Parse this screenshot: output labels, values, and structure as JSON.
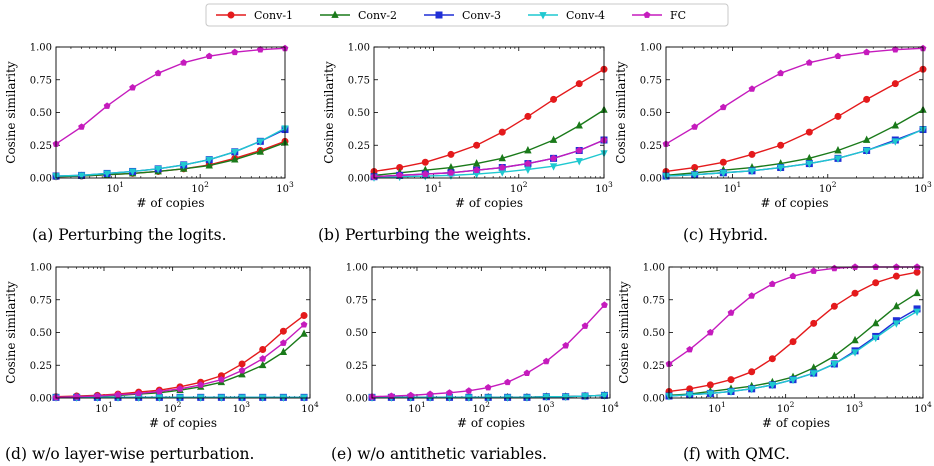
{
  "legend": [
    {
      "name": "Conv-1",
      "color": "#e41a1c",
      "marker": "circle"
    },
    {
      "name": "Conv-2",
      "color": "#1a7a1a",
      "marker": "triangle-up"
    },
    {
      "name": "Conv-3",
      "color": "#1f2fd6",
      "marker": "square"
    },
    {
      "name": "Conv-4",
      "color": "#1fc8d0",
      "marker": "triangle-down"
    },
    {
      "name": "FC",
      "color": "#c51bbd",
      "marker": "pentagon"
    }
  ],
  "chart_data": [
    {
      "type": "line",
      "caption": "(a) Perturbing the logits.",
      "xlabel": "# of copies",
      "ylabel": "Cosine similarity",
      "xscale": "log",
      "xlim": [
        2,
        1000
      ],
      "ylim": [
        0,
        1
      ],
      "xticks": [
        10,
        100,
        1000
      ],
      "yticks": [
        0,
        0.25,
        0.5,
        0.75,
        1.0
      ],
      "x": [
        2,
        4,
        8,
        16,
        32,
        64,
        128,
        256,
        512,
        1000
      ],
      "series": [
        {
          "name": "Conv-1",
          "values": [
            0.01,
            0.015,
            0.025,
            0.035,
            0.05,
            0.07,
            0.1,
            0.15,
            0.21,
            0.28
          ]
        },
        {
          "name": "Conv-2",
          "values": [
            0.01,
            0.015,
            0.025,
            0.035,
            0.05,
            0.07,
            0.095,
            0.14,
            0.2,
            0.27
          ]
        },
        {
          "name": "Conv-3",
          "values": [
            0.015,
            0.02,
            0.035,
            0.05,
            0.07,
            0.1,
            0.14,
            0.2,
            0.28,
            0.37
          ]
        },
        {
          "name": "Conv-4",
          "values": [
            0.015,
            0.02,
            0.035,
            0.05,
            0.07,
            0.1,
            0.14,
            0.2,
            0.28,
            0.38
          ]
        },
        {
          "name": "FC",
          "values": [
            0.26,
            0.39,
            0.55,
            0.69,
            0.8,
            0.88,
            0.93,
            0.96,
            0.98,
            0.99
          ]
        }
      ]
    },
    {
      "type": "line",
      "caption": "(b) Perturbing the weights.",
      "xlabel": "# of copies",
      "ylabel": "Cosine similarity",
      "xscale": "log",
      "xlim": [
        2,
        1000
      ],
      "ylim": [
        0,
        1
      ],
      "xticks": [
        10,
        100,
        1000
      ],
      "yticks": [
        0,
        0.25,
        0.5,
        0.75,
        1.0
      ],
      "x": [
        2,
        4,
        8,
        16,
        32,
        64,
        128,
        256,
        512,
        1000
      ],
      "series": [
        {
          "name": "Conv-1",
          "values": [
            0.05,
            0.08,
            0.12,
            0.18,
            0.25,
            0.35,
            0.47,
            0.6,
            0.72,
            0.83
          ]
        },
        {
          "name": "Conv-2",
          "values": [
            0.02,
            0.04,
            0.06,
            0.08,
            0.11,
            0.15,
            0.21,
            0.29,
            0.4,
            0.52
          ]
        },
        {
          "name": "Conv-3",
          "values": [
            0.01,
            0.02,
            0.03,
            0.04,
            0.06,
            0.08,
            0.11,
            0.15,
            0.21,
            0.29
          ]
        },
        {
          "name": "Conv-4",
          "values": [
            0.005,
            0.01,
            0.015,
            0.02,
            0.03,
            0.045,
            0.065,
            0.09,
            0.13,
            0.19
          ]
        },
        {
          "name": "FC",
          "values": [
            0.01,
            0.02,
            0.03,
            0.04,
            0.06,
            0.08,
            0.11,
            0.15,
            0.21,
            0.29
          ]
        }
      ]
    },
    {
      "type": "line",
      "caption": "(c) Hybrid.",
      "xlabel": "# of copies",
      "ylabel": "Cosine similarity",
      "xscale": "log",
      "xlim": [
        2,
        1000
      ],
      "ylim": [
        0,
        1
      ],
      "xticks": [
        10,
        100,
        1000
      ],
      "yticks": [
        0,
        0.25,
        0.5,
        0.75,
        1.0
      ],
      "x": [
        2,
        4,
        8,
        16,
        32,
        64,
        128,
        256,
        512,
        1000
      ],
      "series": [
        {
          "name": "Conv-1",
          "values": [
            0.05,
            0.08,
            0.12,
            0.18,
            0.25,
            0.35,
            0.47,
            0.6,
            0.72,
            0.83
          ]
        },
        {
          "name": "Conv-2",
          "values": [
            0.02,
            0.04,
            0.06,
            0.08,
            0.11,
            0.15,
            0.21,
            0.29,
            0.4,
            0.52
          ]
        },
        {
          "name": "Conv-3",
          "values": [
            0.015,
            0.025,
            0.04,
            0.055,
            0.08,
            0.11,
            0.15,
            0.21,
            0.29,
            0.37
          ]
        },
        {
          "name": "Conv-4",
          "values": [
            0.015,
            0.025,
            0.04,
            0.055,
            0.08,
            0.11,
            0.15,
            0.21,
            0.28,
            0.37
          ]
        },
        {
          "name": "FC",
          "values": [
            0.26,
            0.39,
            0.54,
            0.68,
            0.8,
            0.88,
            0.93,
            0.96,
            0.98,
            0.99
          ]
        }
      ]
    },
    {
      "type": "line",
      "caption": "(d) w/o layer-wise perturbation.",
      "xlabel": "# of copies",
      "ylabel": "Cosine similarity",
      "xscale": "log",
      "xlim": [
        2,
        10000
      ],
      "ylim": [
        0,
        1
      ],
      "xticks": [
        10,
        100,
        1000,
        10000
      ],
      "yticks": [
        0,
        0.25,
        0.5,
        0.75,
        1.0
      ],
      "x": [
        2,
        4,
        8,
        16,
        32,
        64,
        128,
        256,
        512,
        1024,
        2048,
        4096,
        8192
      ],
      "series": [
        {
          "name": "Conv-1",
          "values": [
            0.01,
            0.015,
            0.02,
            0.03,
            0.045,
            0.06,
            0.085,
            0.12,
            0.17,
            0.26,
            0.37,
            0.51,
            0.63
          ]
        },
        {
          "name": "Conv-2",
          "values": [
            0.005,
            0.01,
            0.015,
            0.02,
            0.03,
            0.04,
            0.06,
            0.085,
            0.12,
            0.18,
            0.25,
            0.35,
            0.49
          ]
        },
        {
          "name": "Conv-3",
          "values": [
            0.005,
            0.005,
            0.005,
            0.005,
            0.005,
            0.005,
            0.005,
            0.005,
            0.005,
            0.005,
            0.005,
            0.005,
            0.005
          ]
        },
        {
          "name": "Conv-4",
          "values": [
            0.005,
            0.005,
            0.005,
            0.005,
            0.005,
            0.005,
            0.005,
            0.005,
            0.005,
            0.005,
            0.005,
            0.005,
            0.005
          ]
        },
        {
          "name": "FC",
          "values": [
            0.005,
            0.01,
            0.015,
            0.025,
            0.035,
            0.05,
            0.07,
            0.1,
            0.14,
            0.21,
            0.3,
            0.42,
            0.56
          ]
        }
      ]
    },
    {
      "type": "line",
      "caption": "(e) w/o antithetic variables.",
      "xlabel": "# of copies",
      "ylabel": "",
      "xscale": "log",
      "xlim": [
        2,
        10000
      ],
      "ylim": [
        0,
        1
      ],
      "xticks": [
        10,
        100,
        1000,
        10000
      ],
      "yticks": [
        0,
        0.25,
        0.5,
        0.75,
        1.0
      ],
      "x": [
        2,
        4,
        8,
        16,
        32,
        64,
        128,
        256,
        512,
        1024,
        2048,
        4096,
        8192
      ],
      "series": [
        {
          "name": "Conv-1",
          "values": [
            0.005,
            0.005,
            0.005,
            0.005,
            0.005,
            0.005,
            0.005,
            0.005,
            0.005,
            0.01,
            0.01,
            0.015,
            0.02
          ]
        },
        {
          "name": "Conv-2",
          "values": [
            0.005,
            0.005,
            0.005,
            0.005,
            0.005,
            0.005,
            0.005,
            0.005,
            0.005,
            0.01,
            0.01,
            0.015,
            0.02
          ]
        },
        {
          "name": "Conv-3",
          "values": [
            0.005,
            0.005,
            0.005,
            0.005,
            0.005,
            0.005,
            0.005,
            0.005,
            0.005,
            0.01,
            0.01,
            0.015,
            0.02
          ]
        },
        {
          "name": "Conv-4",
          "values": [
            0.005,
            0.005,
            0.005,
            0.005,
            0.005,
            0.005,
            0.005,
            0.005,
            0.005,
            0.01,
            0.01,
            0.015,
            0.02
          ]
        },
        {
          "name": "FC",
          "values": [
            0.01,
            0.015,
            0.02,
            0.03,
            0.04,
            0.055,
            0.08,
            0.12,
            0.19,
            0.28,
            0.4,
            0.55,
            0.71
          ]
        }
      ]
    },
    {
      "type": "line",
      "caption": "(f) with QMC.",
      "xlabel": "# of copies",
      "ylabel": "Cosine similarity",
      "xscale": "log",
      "xlim": [
        2,
        10000
      ],
      "ylim": [
        0,
        1
      ],
      "xticks": [
        10,
        100,
        1000,
        10000
      ],
      "yticks": [
        0,
        0.25,
        0.5,
        0.75,
        1.0
      ],
      "x": [
        2,
        4,
        8,
        16,
        32,
        64,
        128,
        256,
        512,
        1024,
        2048,
        4096,
        8192
      ],
      "series": [
        {
          "name": "Conv-1",
          "values": [
            0.05,
            0.07,
            0.1,
            0.14,
            0.2,
            0.3,
            0.43,
            0.57,
            0.7,
            0.8,
            0.88,
            0.93,
            0.96
          ]
        },
        {
          "name": "Conv-2",
          "values": [
            0.02,
            0.03,
            0.05,
            0.07,
            0.09,
            0.12,
            0.16,
            0.23,
            0.32,
            0.44,
            0.57,
            0.7,
            0.8
          ]
        },
        {
          "name": "Conv-3",
          "values": [
            0.015,
            0.025,
            0.035,
            0.05,
            0.07,
            0.1,
            0.14,
            0.19,
            0.26,
            0.36,
            0.47,
            0.59,
            0.68
          ]
        },
        {
          "name": "Conv-4",
          "values": [
            0.015,
            0.025,
            0.035,
            0.05,
            0.07,
            0.1,
            0.14,
            0.19,
            0.26,
            0.35,
            0.46,
            0.57,
            0.66
          ]
        },
        {
          "name": "FC",
          "values": [
            0.26,
            0.37,
            0.5,
            0.65,
            0.78,
            0.87,
            0.93,
            0.97,
            0.99,
            1.0,
            1.0,
            1.0,
            1.0
          ]
        }
      ]
    }
  ]
}
